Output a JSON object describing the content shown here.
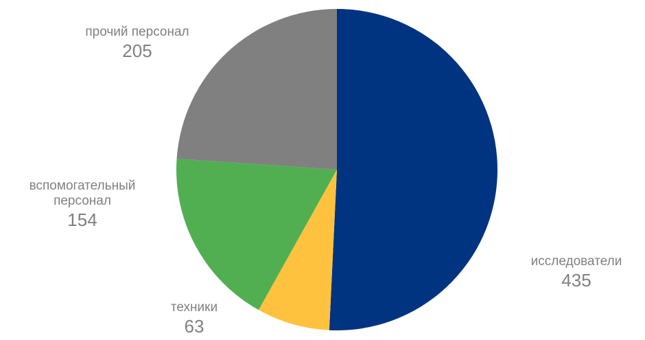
{
  "chart_data": {
    "type": "pie",
    "slices": [
      {
        "label": "исследователи",
        "value": 435,
        "color": "#003380"
      },
      {
        "label": "техники",
        "value": 63,
        "color": "#FFC23E"
      },
      {
        "label": "вспомогательный персонал",
        "value": 154,
        "color": "#51AF52"
      },
      {
        "label": "прочий персонал",
        "value": 205,
        "color": "#808080"
      }
    ],
    "labels": {
      "researchers": {
        "name": "исследователи",
        "value": "435"
      },
      "technicians": {
        "name": "техники",
        "value": "63"
      },
      "support": {
        "name_line1": "вспомогательный",
        "name_line2": "персонал",
        "value": "154"
      },
      "other": {
        "name": "прочий персонал",
        "value": "205"
      }
    },
    "start_angle": "12 o'clock",
    "direction": "clockwise",
    "legend": "none",
    "label_color": "#808080"
  }
}
